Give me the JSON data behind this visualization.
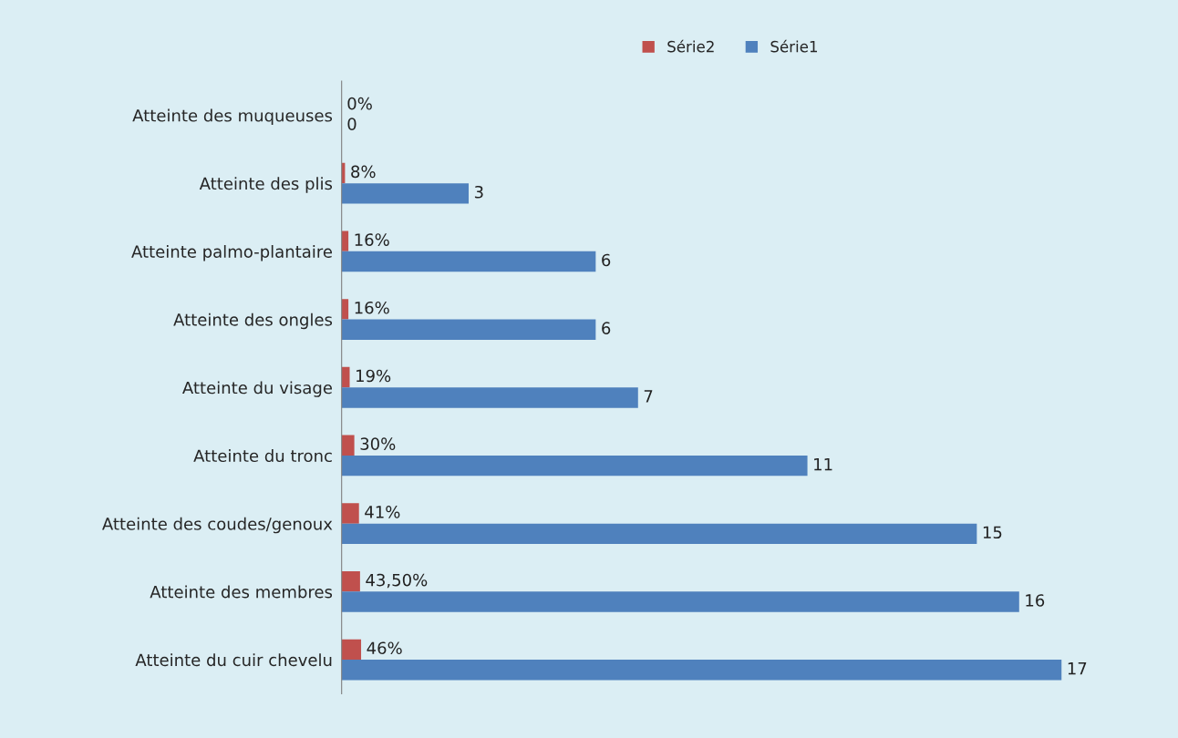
{
  "chart_data": {
    "type": "bar",
    "orientation": "horizontal",
    "categories": [
      "Atteinte des muqueuses",
      "Atteinte des plis",
      "Atteinte palmo-plantaire",
      "Atteinte des ongles",
      "Atteinte du visage",
      "Atteinte du tronc",
      "Atteinte des coudes/genoux",
      "Atteinte des membres",
      "Atteinte du cuir chevelu"
    ],
    "series": [
      {
        "name": "Série2",
        "color": "#c0504d",
        "values": [
          0,
          0.08,
          0.16,
          0.16,
          0.19,
          0.3,
          0.41,
          0.435,
          0.46
        ],
        "value_labels": [
          "0%",
          "8%",
          "16%",
          "16%",
          "19%",
          "30%",
          "41%",
          "43,50%",
          "46%"
        ]
      },
      {
        "name": "Série1",
        "color": "#4f81bd",
        "values": [
          0,
          3,
          6,
          6,
          7,
          11,
          15,
          16,
          17
        ],
        "value_labels": [
          "0",
          "3",
          "6",
          "6",
          "7",
          "11",
          "15",
          "16",
          "17"
        ]
      }
    ],
    "legend": "top",
    "grid": false,
    "tick_labels": "y"
  }
}
